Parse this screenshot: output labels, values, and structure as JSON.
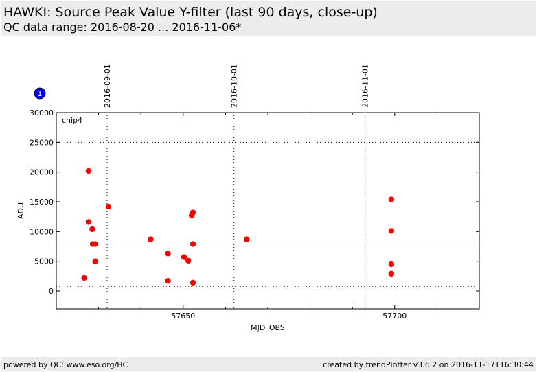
{
  "header": {
    "title": "HAWKI: Source Peak Value Y-filter (last 90 days, close-up)",
    "subtitle": "QC data range: 2016-08-20 ... 2016-11-06*"
  },
  "footer": {
    "left": "powered by QC: www.eso.org/HC",
    "right": "created by trendPlotter v3.6.2 on 2016-11-17T16:30:44"
  },
  "badge": "1",
  "colors": {
    "points": "#ff0000",
    "badge": "#0000ee"
  },
  "chart_data": {
    "type": "scatter",
    "panel_label": "chip4",
    "xlabel": "MJD_OBS",
    "ylabel": "ADU",
    "xlim": [
      57620,
      57720
    ],
    "ylim": [
      -3000,
      30000
    ],
    "x_ticks": [
      57650,
      57700
    ],
    "y_ticks": [
      0,
      5000,
      10000,
      15000,
      20000,
      25000,
      30000
    ],
    "date_markers": [
      {
        "label": "2016-09-01",
        "mjd": 57632
      },
      {
        "label": "2016-10-01",
        "mjd": 57662
      },
      {
        "label": "2016-11-01",
        "mjd": 57693
      }
    ],
    "reference_line": 7900,
    "limit_lines": [
      25000,
      800
    ],
    "series": [
      {
        "points": [
          {
            "x": 57626.6,
            "y": 2200
          },
          {
            "x": 57627.6,
            "y": 20200
          },
          {
            "x": 57627.6,
            "y": 11600
          },
          {
            "x": 57628.5,
            "y": 10400
          },
          {
            "x": 57628.6,
            "y": 7900
          },
          {
            "x": 57629.2,
            "y": 7900
          },
          {
            "x": 57629.2,
            "y": 5000
          },
          {
            "x": 57632.3,
            "y": 14200
          },
          {
            "x": 57642.3,
            "y": 8700
          },
          {
            "x": 57646.4,
            "y": 6300
          },
          {
            "x": 57646.4,
            "y": 1700
          },
          {
            "x": 57650.2,
            "y": 5700
          },
          {
            "x": 57651.2,
            "y": 5100
          },
          {
            "x": 57652.0,
            "y": 12700
          },
          {
            "x": 57652.3,
            "y": 13200
          },
          {
            "x": 57652.3,
            "y": 7900
          },
          {
            "x": 57652.3,
            "y": 1400
          },
          {
            "x": 57665.0,
            "y": 8700
          },
          {
            "x": 57699.2,
            "y": 15400
          },
          {
            "x": 57699.2,
            "y": 10100
          },
          {
            "x": 57699.2,
            "y": 4500
          },
          {
            "x": 57699.2,
            "y": 2900
          }
        ]
      }
    ]
  }
}
